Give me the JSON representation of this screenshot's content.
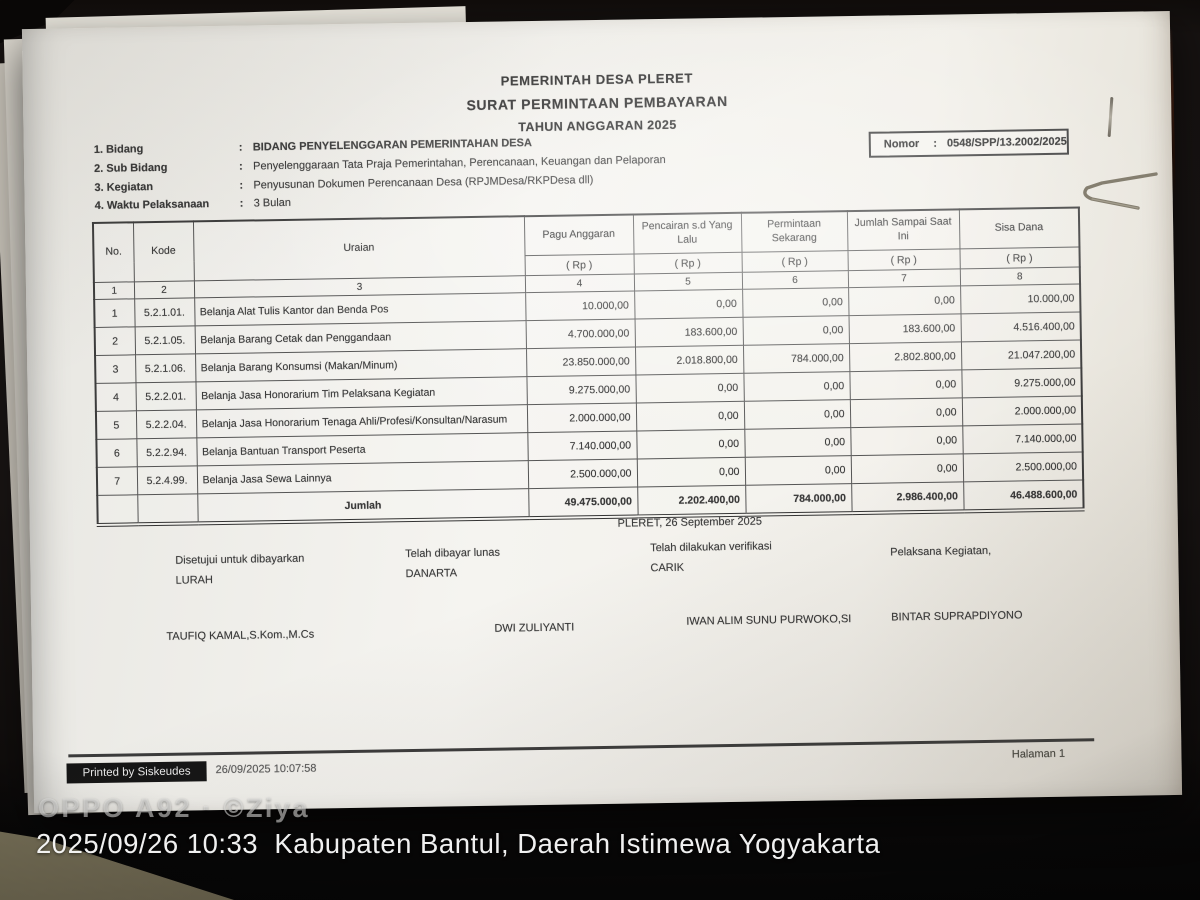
{
  "photo": {
    "camera_watermark": "OPPO A92 · ©Ziya",
    "timestamp_watermark": "2025/09/26 10:33  Kabupaten Bantul, Daerah Istimewa Yogyakarta"
  },
  "document": {
    "header": {
      "line1": "PEMERINTAH DESA PLERET",
      "line2": "SURAT PERMINTAAN PEMBAYARAN",
      "line3": "TAHUN ANGGARAN 2025"
    },
    "separator": ":",
    "nomor": {
      "label": "Nomor",
      "value": "0548/SPP/13.2002/2025"
    },
    "meta": [
      {
        "label": "1. Bidang",
        "value": "BIDANG PENYELENGGARAN PEMERINTAHAN DESA"
      },
      {
        "label": "2. Sub Bidang",
        "value": "Penyelenggaraan Tata Praja Pemerintahan, Perencanaan, Keuangan dan Pelaporan"
      },
      {
        "label": "3. Kegiatan",
        "value": "Penyusunan Dokumen Perencanaan Desa (RPJMDesa/RKPDesa dll)"
      },
      {
        "label": "4. Waktu Pelaksanaan",
        "value": "3  Bulan"
      }
    ],
    "table": {
      "headers": [
        "No.",
        "Kode",
        "Uraian",
        "Pagu Anggaran",
        "Pencairan s.d Yang Lalu",
        "Permintaan Sekarang",
        "Jumlah Sampai Saat Ini",
        "Sisa Dana"
      ],
      "rp_label": "( Rp )",
      "column_numbers": [
        "1",
        "2",
        "3",
        "4",
        "5",
        "6",
        "7",
        "8"
      ],
      "rows": [
        [
          "1",
          "5.2.1.01.",
          "Belanja Alat Tulis Kantor dan Benda Pos",
          "10.000,00",
          "0,00",
          "0,00",
          "0,00",
          "10.000,00"
        ],
        [
          "2",
          "5.2.1.05.",
          "Belanja Barang Cetak dan Penggandaan",
          "4.700.000,00",
          "183.600,00",
          "0,00",
          "183.600,00",
          "4.516.400,00"
        ],
        [
          "3",
          "5.2.1.06.",
          "Belanja Barang Konsumsi (Makan/Minum)",
          "23.850.000,00",
          "2.018.800,00",
          "784.000,00",
          "2.802.800,00",
          "21.047.200,00"
        ],
        [
          "4",
          "5.2.2.01.",
          "Belanja Jasa Honorarium Tim Pelaksana Kegiatan",
          "9.275.000,00",
          "0,00",
          "0,00",
          "0,00",
          "9.275.000,00"
        ],
        [
          "5",
          "5.2.2.04.",
          "Belanja Jasa Honorarium Tenaga Ahli/Profesi/Konsultan/Narasum",
          "2.000.000,00",
          "0,00",
          "0,00",
          "0,00",
          "2.000.000,00"
        ],
        [
          "6",
          "5.2.2.94.",
          "Belanja Bantuan Transport Peserta",
          "7.140.000,00",
          "0,00",
          "0,00",
          "0,00",
          "7.140.000,00"
        ],
        [
          "7",
          "5.2.4.99.",
          "Belanja Jasa Sewa Lainnya",
          "2.500.000,00",
          "0,00",
          "0,00",
          "0,00",
          "2.500.000,00"
        ]
      ],
      "total_row": [
        "",
        "",
        "Jumlah",
        "49.475.000,00",
        "2.202.400,00",
        "784.000,00",
        "2.986.400,00",
        "46.488.600,00"
      ]
    },
    "place_date": "PLERET,  26 September 2025",
    "signatures": [
      {
        "role_line1": "Disetujui untuk dibayarkan",
        "role_line2": "LURAH",
        "name": "TAUFIQ KAMAL,S.Kom.,M.Cs"
      },
      {
        "role_line1": "Telah dibayar lunas",
        "role_line2": "DANARTA",
        "name": "DWI ZULIYANTI"
      },
      {
        "role_line1": "Telah dilakukan verifikasi",
        "role_line2": "CARIK",
        "name": "IWAN ALIM SUNU PURWOKO,SI"
      },
      {
        "role_line1": "Pelaksana Kegiatan,",
        "role_line2": "",
        "name": "BINTAR SUPRAPDIYONO"
      }
    ],
    "footer": {
      "printed_by": "Printed by Siskeudes",
      "printed_at": "26/09/2025 10:07:58",
      "page": "Halaman 1"
    }
  }
}
